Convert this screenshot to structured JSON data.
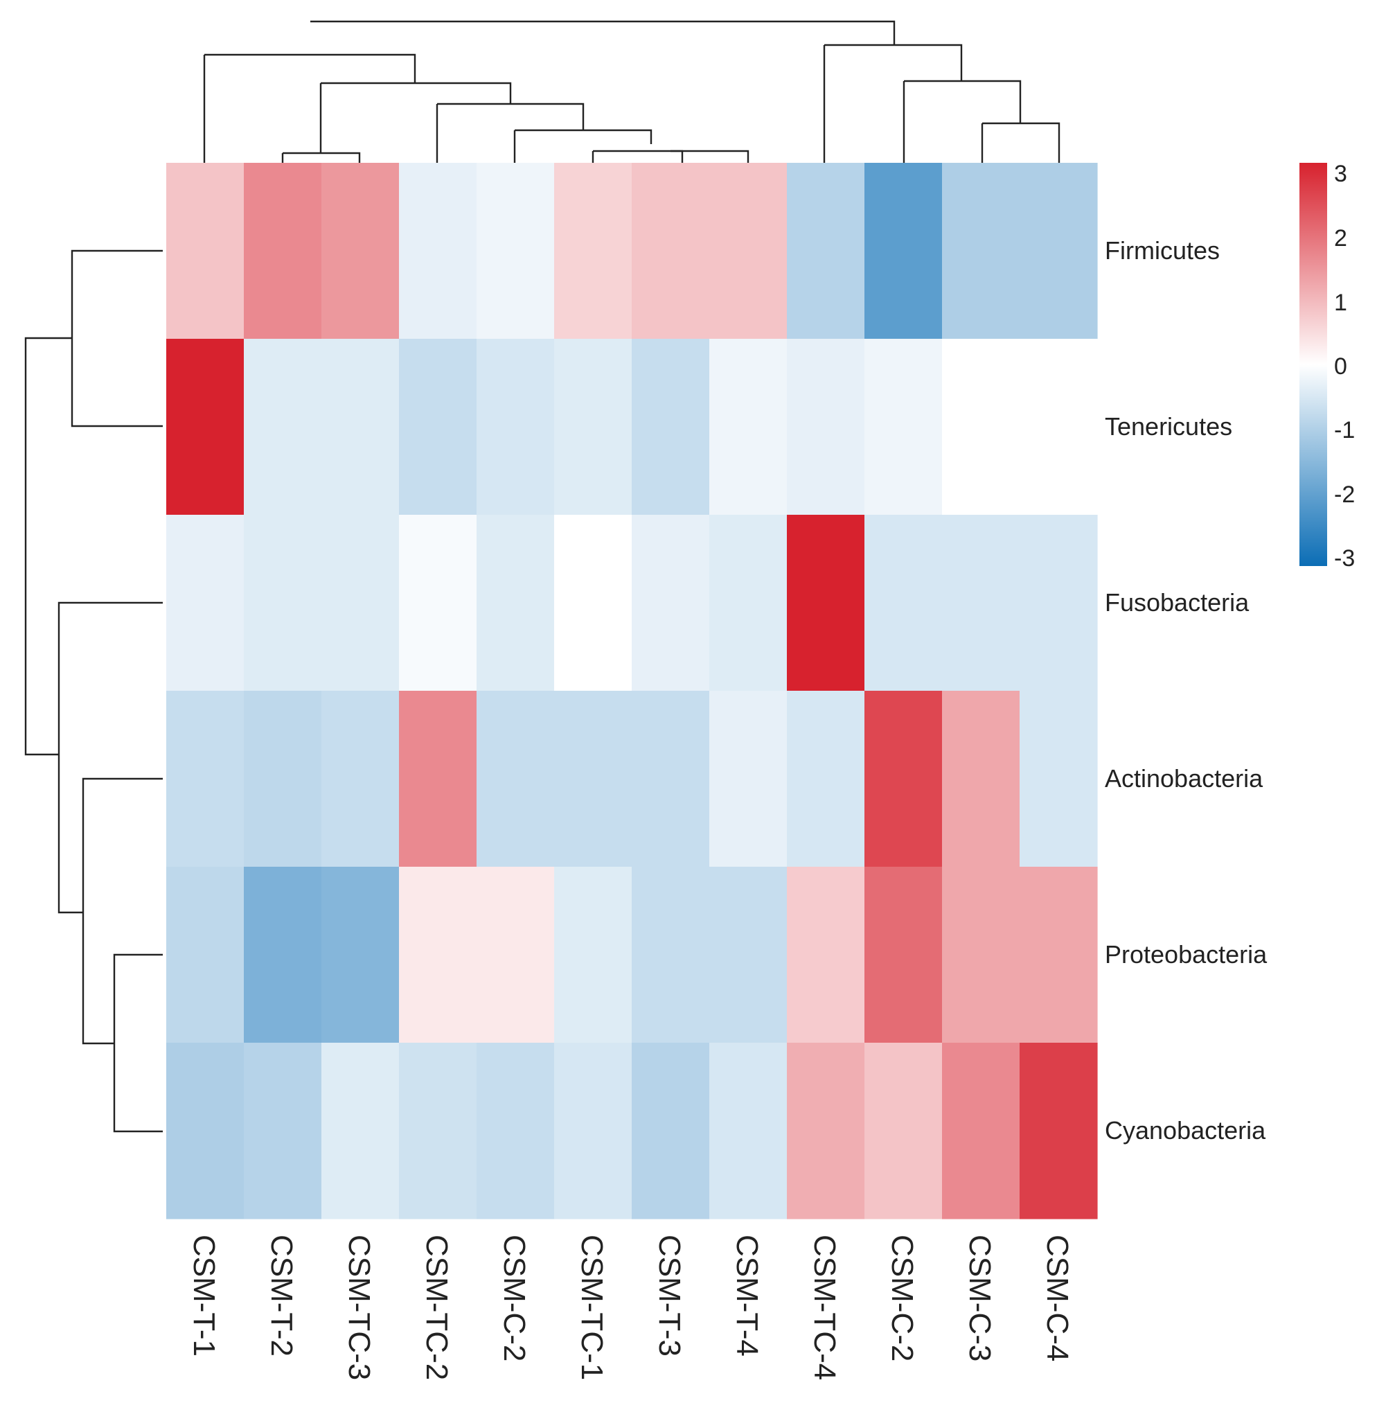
{
  "chart_data": {
    "type": "heatmap",
    "title": "",
    "rows": [
      "Firmicutes",
      "Tenericutes",
      "Fusobacteria",
      "Actinobacteria",
      "Proteobacteria",
      "Cyanobacteria"
    ],
    "columns": [
      "CSM-T-1",
      "CSM-T-2",
      "CSM-TC-3",
      "CSM-TC-2",
      "CSM-C-2",
      "CSM-TC-1",
      "CSM-T-3",
      "CSM-T-4",
      "CSM-TC-4",
      "CSM-C-2",
      "CSM-C-3",
      "CSM-C-4"
    ],
    "values": [
      [
        0.8,
        1.6,
        1.4,
        -0.3,
        -0.2,
        0.6,
        0.8,
        0.8,
        -0.9,
        -2.0,
        -1.0,
        -1.0
      ],
      [
        3.0,
        -0.4,
        -0.4,
        -0.7,
        -0.5,
        -0.4,
        -0.7,
        -0.2,
        -0.3,
        -0.2,
        0.0,
        0.0
      ],
      [
        -0.3,
        -0.4,
        -0.4,
        -0.1,
        -0.4,
        0.0,
        -0.3,
        -0.4,
        3.0,
        -0.5,
        -0.5,
        -0.5
      ],
      [
        -0.7,
        -0.8,
        -0.7,
        1.6,
        -0.7,
        -0.7,
        -0.7,
        -0.3,
        -0.5,
        2.5,
        1.2,
        -0.5
      ],
      [
        -0.8,
        -1.6,
        -1.5,
        0.3,
        0.3,
        -0.4,
        -0.7,
        -0.7,
        0.7,
        2.0,
        1.2,
        1.2
      ],
      [
        -1.0,
        -0.9,
        -0.4,
        -0.6,
        -0.7,
        -0.5,
        -0.9,
        -0.5,
        1.1,
        0.8,
        1.6,
        2.6
      ]
    ],
    "color_scale": {
      "min": -3,
      "max": 3,
      "low_color": "#0b6db5",
      "mid_color": "#ffffff",
      "high_color": "#d7222e",
      "ticks": [
        "3",
        "2",
        "1",
        "0",
        "-1",
        "-2",
        "-3"
      ]
    },
    "row_dendrogram": true,
    "column_dendrogram": true,
    "legend_placement": "right"
  }
}
